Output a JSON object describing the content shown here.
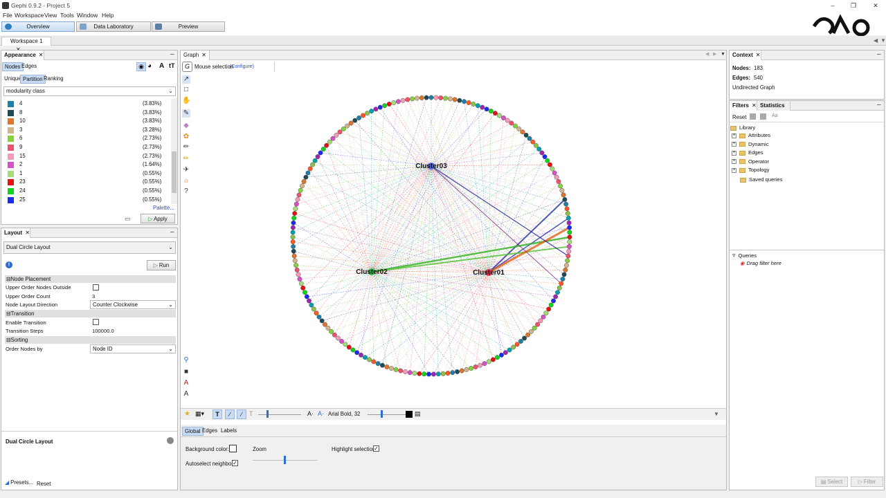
{
  "window": {
    "title": "Gephi 0.9.2 - Project 5"
  },
  "menu": [
    "File",
    "Workspace",
    "View",
    "Tools",
    "Window",
    "Help"
  ],
  "toolbar": {
    "overview": "Overview",
    "data_lab": "Data Laboratory",
    "preview": "Preview"
  },
  "workspace_tab": "Workspace 1",
  "appearance": {
    "tab": "Appearance",
    "nodes": "Nodes",
    "edges": "Edges",
    "unique": "Unique",
    "partition": "Partition",
    "ranking": "Ranking",
    "attribute": "modularity class",
    "palette": "Palette...",
    "apply": "Apply",
    "items": [
      {
        "label": "4",
        "pct": "(3.83%)",
        "color": "#1f7fa8"
      },
      {
        "label": "8",
        "pct": "(3.83%)",
        "color": "#1f4a58"
      },
      {
        "label": "10",
        "pct": "(3.83%)",
        "color": "#e0752a"
      },
      {
        "label": "3",
        "pct": "(3.28%)",
        "color": "#d4b48a"
      },
      {
        "label": "6",
        "pct": "(2.73%)",
        "color": "#86d23c"
      },
      {
        "label": "9",
        "pct": "(2.73%)",
        "color": "#f0516a"
      },
      {
        "label": "15",
        "pct": "(2.73%)",
        "color": "#f49bb9"
      },
      {
        "label": "2",
        "pct": "(1.64%)",
        "color": "#d84fc7"
      },
      {
        "label": "1",
        "pct": "(0.55%)",
        "color": "#a4dc7a"
      },
      {
        "label": "23",
        "pct": "(0.55%)",
        "color": "#e81010"
      },
      {
        "label": "24",
        "pct": "(0.55%)",
        "color": "#12d41a"
      },
      {
        "label": "25",
        "pct": "(0.55%)",
        "color": "#1a2cf0"
      }
    ]
  },
  "layout": {
    "tab": "Layout",
    "algorithm": "Dual Circle Layout",
    "run": "Run",
    "sections": {
      "placement": "Node Placement",
      "transition": "Transition",
      "sorting": "Sorting"
    },
    "props": {
      "upper_outside": "Upper Order Nodes Outside",
      "upper_count": "Upper Order Count",
      "upper_count_val": "3",
      "direction": "Node Layout Direction",
      "direction_val": "Counter Clockwise",
      "enable_transition": "Enable Transition",
      "steps": "Transition Steps",
      "steps_val": "100000.0",
      "order_by": "Order Nodes by",
      "order_by_val": "Node ID"
    },
    "desc_title": "Dual Circle Layout",
    "presets": "Presets...",
    "reset": "Reset"
  },
  "graph": {
    "tab": "Graph",
    "mouse_selection": "Mouse selection",
    "configure": "(Configure)",
    "font": "Arial Bold, 32",
    "cluster_labels": [
      "Cluster03",
      "Cluster02",
      "Cluster01"
    ],
    "bottom_tabs": [
      "Global",
      "Edges",
      "Labels"
    ],
    "bg_color": "Background color:",
    "zoom": "Zoom",
    "highlight": "Highlight selection",
    "autoselect": "Autoselect neighbor"
  },
  "context": {
    "tab": "Context",
    "nodes_label": "Nodes:",
    "nodes_val": "183",
    "edges_label": "Edges:",
    "edges_val": "540",
    "graph_type": "Undirected Graph"
  },
  "filters": {
    "tab": "Filters",
    "stats_tab": "Statistics",
    "reset": "Reset",
    "library": "Library",
    "tree": [
      "Attributes",
      "Dynamic",
      "Edges",
      "Operator",
      "Topology"
    ],
    "saved": "Saved queries",
    "queries": "Queries",
    "drag": "Drag filter here",
    "select": "Select",
    "filter": "Filter"
  }
}
